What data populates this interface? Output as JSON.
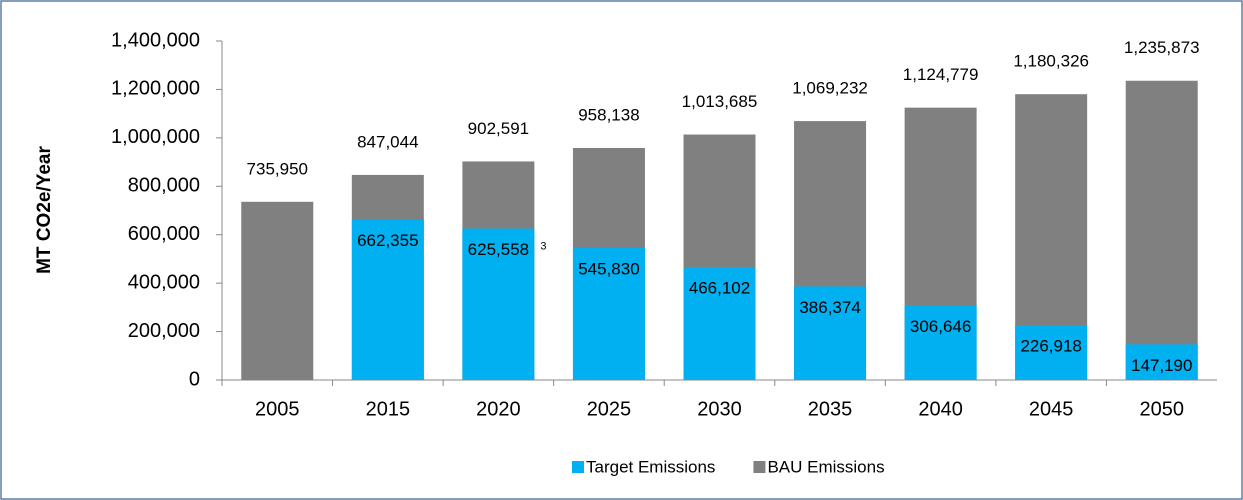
{
  "chart_data": {
    "type": "bar",
    "bar_mode": "overlap",
    "y_label": "MT CO2e/Year",
    "categories": [
      "2005",
      "2015",
      "2020",
      "2025",
      "2030",
      "2035",
      "2040",
      "2045",
      "2050"
    ],
    "series": [
      {
        "name": "Target Emissions",
        "color": "#00b0f0",
        "values": [
          null,
          662355,
          625558,
          545830,
          466102,
          386374,
          306646,
          226918,
          147190
        ],
        "value_labels": [
          null,
          "662,355",
          "625,558",
          "545,830",
          "466,102",
          "386,374",
          "306,646",
          "226,918",
          "147,190"
        ]
      },
      {
        "name": "BAU Emissions",
        "color": "#808080",
        "values": [
          735950,
          847044,
          902591,
          958138,
          1013685,
          1069232,
          1124779,
          1180326,
          1235873
        ],
        "value_labels": [
          "735,950",
          "847,044",
          "902,591",
          "958,138",
          "1,013,685",
          "1,069,232",
          "1,124,779",
          "1,180,326",
          "1,235,873"
        ]
      }
    ],
    "footnote_mark": "3",
    "ylim": [
      0,
      1400000
    ],
    "yticks": [
      0,
      {
        "value": 200000,
        "label": "200,000"
      },
      {
        "value": 400000,
        "label": "400,000"
      },
      {
        "value": 600000,
        "label": "600,000"
      },
      {
        "value": 800000,
        "label": "800,000"
      },
      {
        "value": 1000000,
        "label": "1,000,000"
      },
      {
        "value": 1200000,
        "label": "1,200,000"
      },
      {
        "value": 1400000,
        "label": "1,400,000"
      }
    ],
    "grid": false,
    "legend": "bottom"
  }
}
